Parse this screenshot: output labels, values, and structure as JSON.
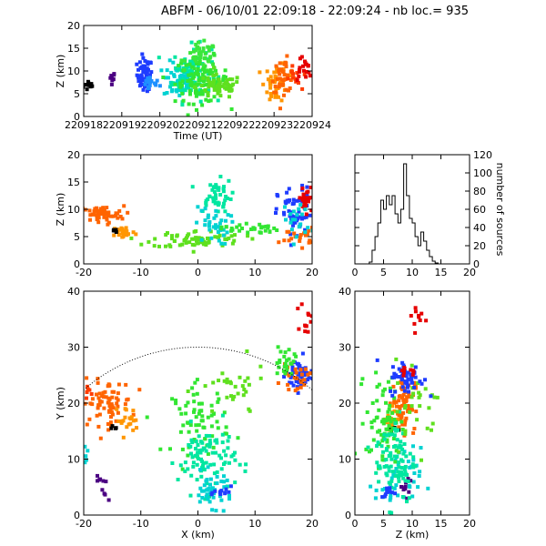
{
  "title": "ABFM - 06/10/01 22:09:18 - 22:09:24 - nb loc.=     935",
  "chart_data": [
    {
      "id": "time-height",
      "type": "scatter",
      "xlabel": "Time (UT)",
      "ylabel": "Z (km)",
      "xlim": [
        220918,
        220924
      ],
      "ylim": [
        0,
        20
      ],
      "xticks": [
        "220918",
        "220919",
        "220920",
        "220921",
        "220922",
        "220923",
        "220924"
      ],
      "yticks": [
        "0",
        "5",
        "10",
        "15",
        "20"
      ],
      "clusters": [
        {
          "color": "#000000",
          "x": 220918.15,
          "y": 6.8,
          "sx": 0.08,
          "sy": 0.6,
          "n": 12
        },
        {
          "color": "#4b0082",
          "x": 220918.75,
          "y": 8.6,
          "sx": 0.04,
          "sy": 0.6,
          "n": 8
        },
        {
          "color": "#1e3cff",
          "x": 220919.6,
          "y": 9.2,
          "sx": 0.1,
          "sy": 1.8,
          "n": 55
        },
        {
          "color": "#1e90ff",
          "x": 220919.75,
          "y": 7.2,
          "sx": 0.12,
          "sy": 0.8,
          "n": 18
        },
        {
          "color": "#00d2d2",
          "x": 220920.5,
          "y": 8.0,
          "sx": 0.2,
          "sy": 2.0,
          "n": 60
        },
        {
          "color": "#00e6a0",
          "x": 220920.85,
          "y": 9.5,
          "sx": 0.25,
          "sy": 3.0,
          "n": 90
        },
        {
          "color": "#32e632",
          "x": 220921.1,
          "y": 8.0,
          "sx": 0.35,
          "sy": 2.5,
          "n": 110
        },
        {
          "color": "#5fe01e",
          "x": 220921.55,
          "y": 6.5,
          "sx": 0.3,
          "sy": 1.3,
          "n": 60
        },
        {
          "color": "#3ce63c",
          "x": 220921.1,
          "y": 13.5,
          "sx": 0.2,
          "sy": 1.3,
          "n": 35
        },
        {
          "color": "#ff9600",
          "x": 220923.05,
          "y": 7.5,
          "sx": 0.15,
          "sy": 2.2,
          "n": 40
        },
        {
          "color": "#ff6400",
          "x": 220923.25,
          "y": 9.0,
          "sx": 0.15,
          "sy": 1.8,
          "n": 40
        },
        {
          "color": "#ff3c00",
          "x": 220923.55,
          "y": 8.2,
          "sx": 0.08,
          "sy": 1.3,
          "n": 12
        },
        {
          "color": "#e60000",
          "x": 220923.75,
          "y": 10.5,
          "sx": 0.12,
          "sy": 1.5,
          "n": 18
        }
      ]
    },
    {
      "id": "x-height",
      "type": "scatter",
      "xlabel": "",
      "ylabel": "Z (km)",
      "xlim": [
        -20,
        20
      ],
      "ylim": [
        0,
        20
      ],
      "xticks": [
        "-20",
        "-10",
        "0",
        "10",
        "20"
      ],
      "yticks": [
        "0",
        "5",
        "10",
        "15",
        "20"
      ],
      "clusters": [
        {
          "color": "#ff6400",
          "x": -17.0,
          "y": 9.0,
          "sx": 2.0,
          "sy": 0.8,
          "n": 60
        },
        {
          "color": "#ff9600",
          "x": -13.0,
          "y": 5.8,
          "sx": 1.0,
          "sy": 0.6,
          "n": 25
        },
        {
          "color": "#000000",
          "x": -14.5,
          "y": 6.0,
          "sx": 0.4,
          "sy": 0.3,
          "n": 5
        },
        {
          "color": "#5fe01e",
          "x": 0.0,
          "y": 4.5,
          "sx": 4.0,
          "sy": 0.8,
          "n": 70
        },
        {
          "color": "#00e6a0",
          "x": 3.0,
          "y": 12.5,
          "sx": 1.5,
          "sy": 1.5,
          "n": 45
        },
        {
          "color": "#00d2d2",
          "x": 2.5,
          "y": 7.0,
          "sx": 1.5,
          "sy": 1.8,
          "n": 35
        },
        {
          "color": "#32e632",
          "x": 9.0,
          "y": 6.5,
          "sx": 2.5,
          "sy": 0.5,
          "n": 30
        },
        {
          "color": "#1e3cff",
          "x": 17.0,
          "y": 9.0,
          "sx": 1.5,
          "sy": 2.5,
          "n": 55
        },
        {
          "color": "#e60000",
          "x": 19.0,
          "y": 11.5,
          "sx": 0.8,
          "sy": 1.5,
          "n": 25
        },
        {
          "color": "#ff6400",
          "x": 17.5,
          "y": 5.0,
          "sx": 1.5,
          "sy": 0.8,
          "n": 20
        },
        {
          "color": "#00d2d2",
          "x": 17.5,
          "y": 8.0,
          "sx": 1.2,
          "sy": 2.0,
          "n": 20
        }
      ]
    },
    {
      "id": "histogram",
      "type": "line",
      "xlabel": "",
      "ylabel": "number of sources",
      "xlim": [
        0,
        20
      ],
      "ylim": [
        0,
        120
      ],
      "xticks": [
        "0",
        "5",
        "10",
        "15",
        "20"
      ],
      "yticks": [
        "0",
        "20",
        "40",
        "60",
        "80",
        "100",
        "120"
      ],
      "step_x": [
        2.5,
        3.0,
        3.5,
        4.0,
        4.5,
        5.0,
        5.5,
        6.0,
        6.5,
        7.0,
        7.5,
        8.0,
        8.5,
        9.0,
        9.5,
        10.0,
        10.5,
        11.0,
        11.5,
        12.0,
        12.5,
        13.0,
        13.5,
        14.0
      ],
      "values": [
        2,
        15,
        30,
        45,
        70,
        60,
        75,
        65,
        75,
        55,
        45,
        60,
        110,
        75,
        50,
        45,
        30,
        20,
        35,
        25,
        15,
        8,
        3,
        1
      ]
    },
    {
      "id": "plan-view",
      "type": "scatter",
      "xlabel": "X (km)",
      "ylabel": "Y (km)",
      "xlim": [
        -20,
        20
      ],
      "ylim": [
        0,
        40
      ],
      "xticks": [
        "-20",
        "-10",
        "0",
        "10",
        "20"
      ],
      "yticks": [
        "0",
        "10",
        "20",
        "30",
        "40"
      ],
      "range_circle": {
        "cx": 0,
        "cy": 0,
        "r": 30
      },
      "clusters": [
        {
          "color": "#ff6400",
          "x": -16.0,
          "y": 20.0,
          "sx": 2.2,
          "sy": 2.0,
          "n": 70
        },
        {
          "color": "#ff9600",
          "x": -12.5,
          "y": 17.0,
          "sx": 1.0,
          "sy": 1.2,
          "n": 20
        },
        {
          "color": "#ff3c00",
          "x": -19.0,
          "y": 22.0,
          "sx": 0.6,
          "sy": 0.8,
          "n": 8
        },
        {
          "color": "#000000",
          "x": -14.5,
          "y": 15.5,
          "sx": 0.4,
          "sy": 0.3,
          "n": 4
        },
        {
          "color": "#00d2d2",
          "x": -19.5,
          "y": 11.0,
          "sx": 0.6,
          "sy": 1.0,
          "n": 6
        },
        {
          "color": "#4b0082",
          "x": -16.5,
          "y": 4.5,
          "sx": 0.8,
          "sy": 1.2,
          "n": 10
        },
        {
          "color": "#32e632",
          "x": 0.5,
          "y": 17.0,
          "sx": 2.5,
          "sy": 3.0,
          "n": 70
        },
        {
          "color": "#00e6a0",
          "x": 1.5,
          "y": 10.0,
          "sx": 2.5,
          "sy": 3.0,
          "n": 90
        },
        {
          "color": "#00d2d2",
          "x": 2.5,
          "y": 4.5,
          "sx": 1.8,
          "sy": 1.5,
          "n": 45
        },
        {
          "color": "#1e3cff",
          "x": 4.5,
          "y": 4.0,
          "sx": 0.8,
          "sy": 0.5,
          "n": 12
        },
        {
          "color": "#5fe01e",
          "x": 6.0,
          "y": 22.0,
          "sx": 3.0,
          "sy": 2.5,
          "n": 30
        },
        {
          "color": "#1e3cff",
          "x": 18.0,
          "y": 25.0,
          "sx": 1.3,
          "sy": 1.5,
          "n": 55
        },
        {
          "color": "#ff6400",
          "x": 17.0,
          "y": 24.5,
          "sx": 1.2,
          "sy": 1.0,
          "n": 25
        },
        {
          "color": "#32e632",
          "x": 15.5,
          "y": 27.5,
          "sx": 1.2,
          "sy": 1.5,
          "n": 25
        },
        {
          "color": "#e60000",
          "x": 19.0,
          "y": 35.0,
          "sx": 0.5,
          "sy": 1.5,
          "n": 12
        }
      ]
    },
    {
      "id": "z-y",
      "type": "scatter",
      "xlabel": "Z (km)",
      "ylabel": "",
      "xlim": [
        0,
        20
      ],
      "ylim": [
        0,
        40
      ],
      "xticks": [
        "0",
        "5",
        "10",
        "15",
        "20"
      ],
      "yticks": [
        "0",
        "10",
        "20",
        "30",
        "40"
      ],
      "clusters": [
        {
          "color": "#ff6400",
          "x": 8.5,
          "y": 20.0,
          "sx": 1.0,
          "sy": 2.5,
          "n": 70
        },
        {
          "color": "#ff9600",
          "x": 6.0,
          "y": 17.0,
          "sx": 0.8,
          "sy": 1.2,
          "n": 20
        },
        {
          "color": "#000000",
          "x": 6.8,
          "y": 15.5,
          "sx": 0.3,
          "sy": 0.3,
          "n": 4
        },
        {
          "color": "#00d2d2",
          "x": 7.5,
          "y": 6.0,
          "sx": 2.0,
          "sy": 3.0,
          "n": 40
        },
        {
          "color": "#4b0082",
          "x": 9.0,
          "y": 4.5,
          "sx": 0.5,
          "sy": 1.2,
          "n": 10
        },
        {
          "color": "#32e632",
          "x": 5.0,
          "y": 17.0,
          "sx": 1.5,
          "sy": 4.0,
          "n": 70
        },
        {
          "color": "#00e6a0",
          "x": 7.0,
          "y": 10.0,
          "sx": 1.8,
          "sy": 4.0,
          "n": 90
        },
        {
          "color": "#5fe01e",
          "x": 11.0,
          "y": 20.0,
          "sx": 2.0,
          "sy": 4.0,
          "n": 30
        },
        {
          "color": "#1e3cff",
          "x": 9.0,
          "y": 24.5,
          "sx": 1.5,
          "sy": 1.5,
          "n": 55
        },
        {
          "color": "#1e3cff",
          "x": 6.0,
          "y": 4.0,
          "sx": 0.7,
          "sy": 0.5,
          "n": 12
        },
        {
          "color": "#e60000",
          "x": 11.0,
          "y": 35.0,
          "sx": 0.8,
          "sy": 1.5,
          "n": 10
        },
        {
          "color": "#e60000",
          "x": 9.5,
          "y": 26.0,
          "sx": 1.0,
          "sy": 0.5,
          "n": 10
        }
      ]
    }
  ]
}
